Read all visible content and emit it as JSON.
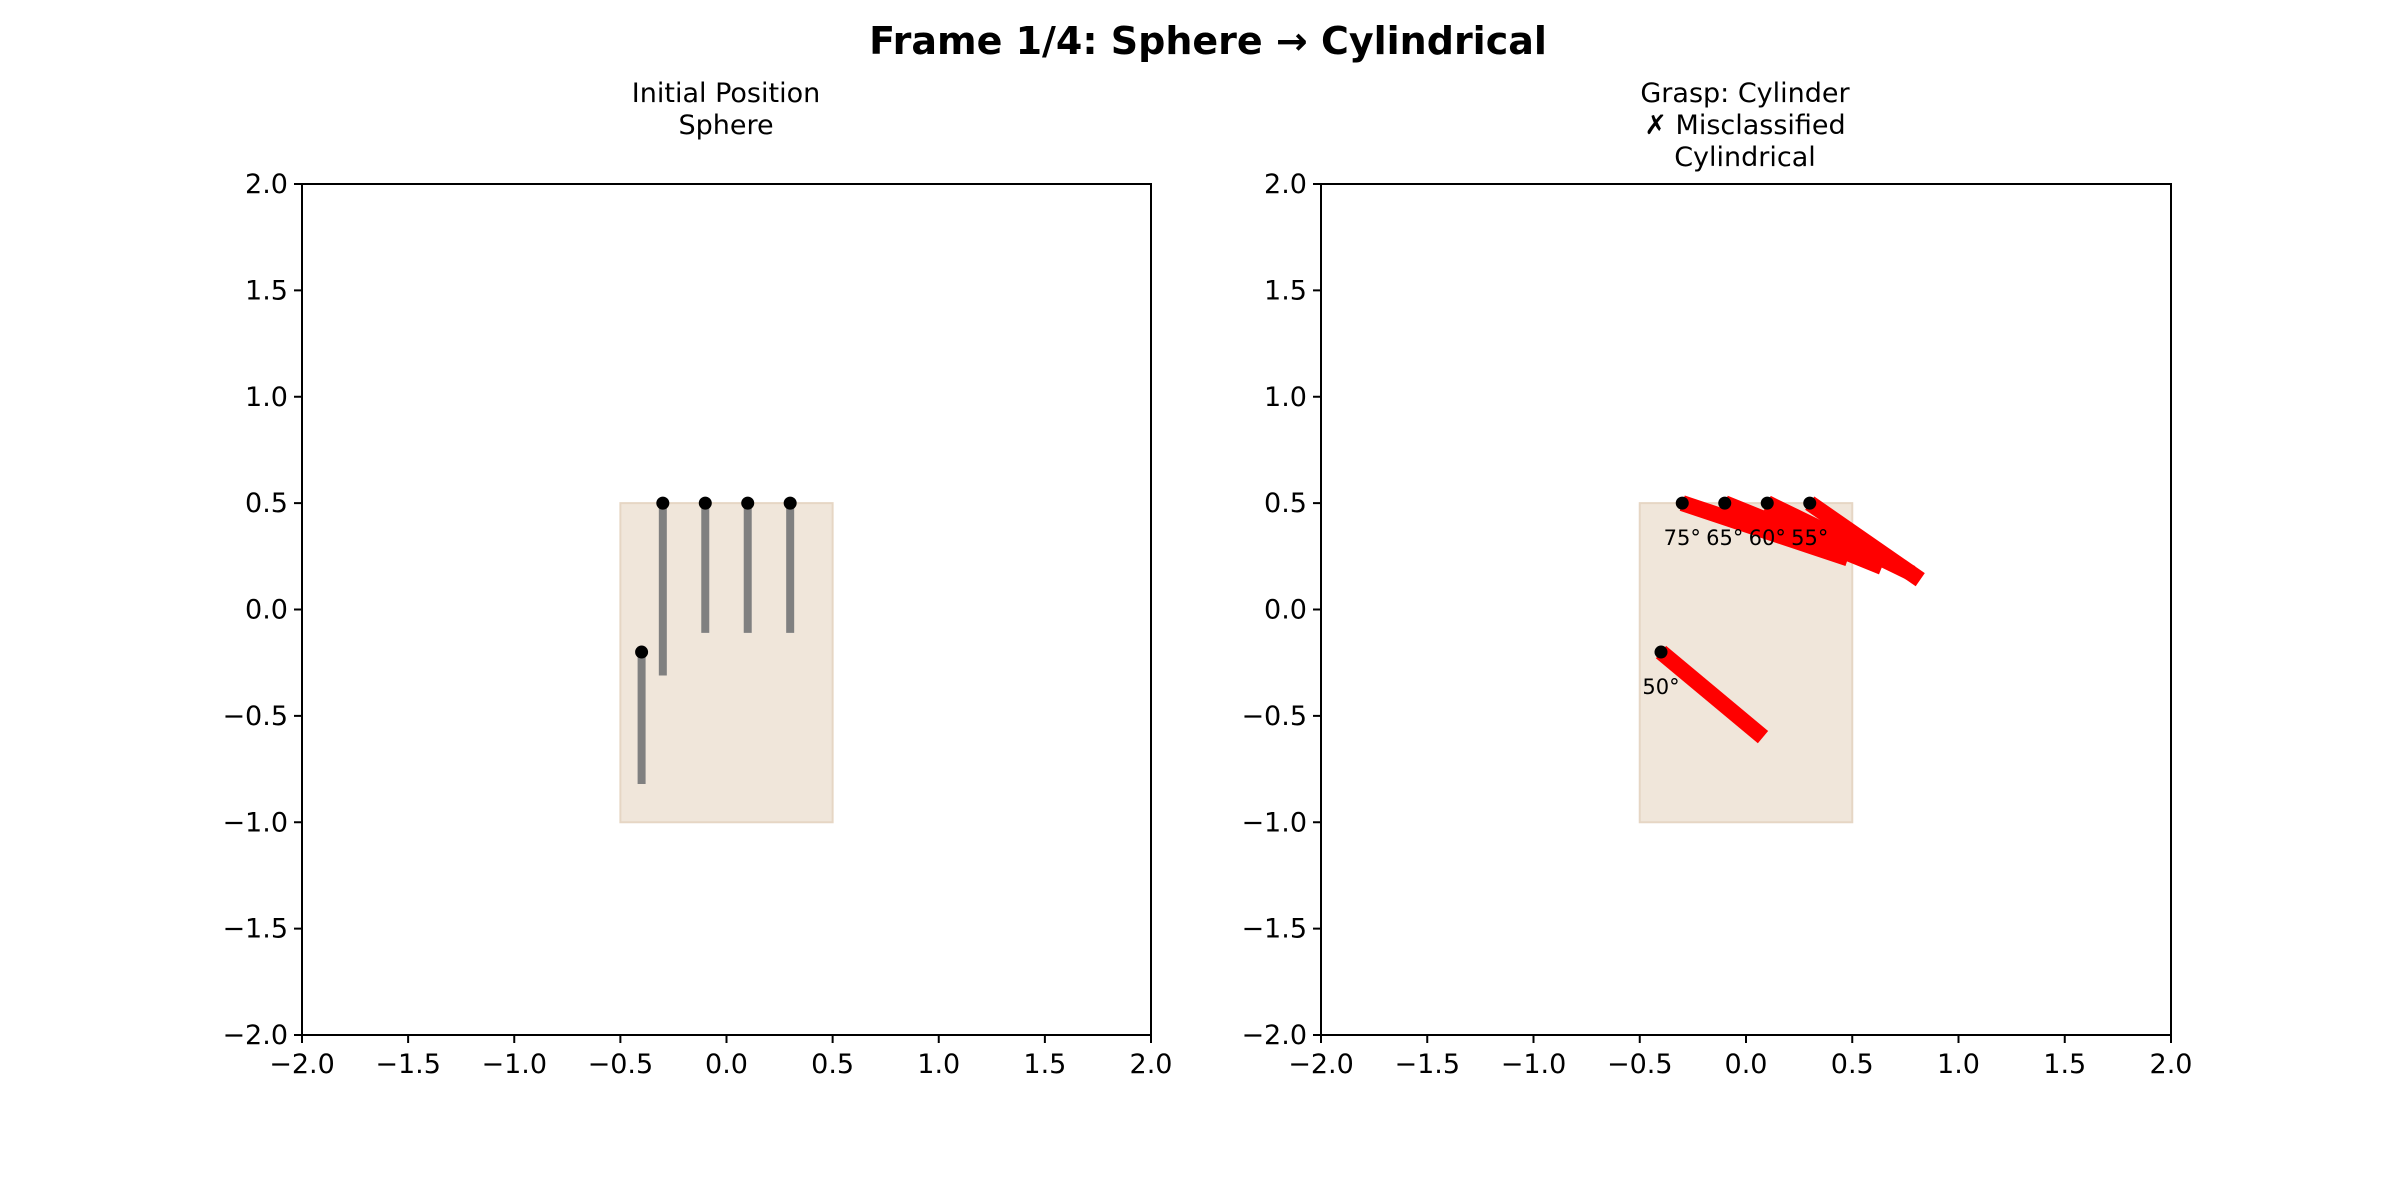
{
  "chart_data": {
    "title": "Frame 1/4: Sphere → Cylindrical",
    "panels": [
      {
        "title_lines": [
          "Initial Position",
          "Sphere"
        ],
        "xlim": [
          -2.0,
          2.0
        ],
        "ylim": [
          -2.0,
          2.0
        ],
        "xticks": [
          "−2.0",
          "−1.5",
          "−1.0",
          "−0.5",
          "0.0",
          "0.5",
          "1.0",
          "1.5",
          "2.0"
        ],
        "yticks": [
          "2.0",
          "1.5",
          "1.0",
          "0.5",
          "0.0",
          "−0.5",
          "−1.0",
          "−1.5",
          "−2.0"
        ],
        "palm": {
          "x": [
            -0.5,
            0.5
          ],
          "y": [
            -1.0,
            0.5
          ],
          "color": "#f0e6da",
          "edge": "#e6d6c4"
        },
        "finger_color": "#808080",
        "fingers": [
          {
            "x": -0.4,
            "y": -0.2,
            "y_end": -0.82
          },
          {
            "x": -0.3,
            "y": 0.5,
            "y_end": -0.31
          },
          {
            "x": -0.1,
            "y": 0.5,
            "y_end": -0.11
          },
          {
            "x": 0.1,
            "y": 0.5,
            "y_end": -0.11
          },
          {
            "x": 0.3,
            "y": 0.5,
            "y_end": -0.11
          }
        ]
      },
      {
        "title_lines": [
          "Grasp: Cylinder",
          "✗ Misclassified",
          "Cylindrical"
        ],
        "xlim": [
          -2.0,
          2.0
        ],
        "ylim": [
          -2.0,
          2.0
        ],
        "xticks": [
          "−2.0",
          "−1.5",
          "−1.0",
          "−0.5",
          "0.0",
          "0.5",
          "1.0",
          "1.5",
          "2.0"
        ],
        "yticks": [
          "2.0",
          "1.5",
          "1.0",
          "0.5",
          "0.0",
          "−0.5",
          "−1.0",
          "−1.5",
          "−2.0"
        ],
        "palm": {
          "x": [
            -0.5,
            0.5
          ],
          "y": [
            -1.0,
            0.5
          ],
          "color": "#f0e6da",
          "edge": "#e6d6c4"
        },
        "finger_color": "#ff0000",
        "fingers": [
          {
            "x": -0.4,
            "y": -0.2,
            "x_end": 0.08,
            "y_end": -0.6,
            "angle_label": "50°"
          },
          {
            "x": -0.3,
            "y": 0.5,
            "x_end": 0.48,
            "y_end": 0.24,
            "angle_label": "75°"
          },
          {
            "x": -0.1,
            "y": 0.5,
            "x_end": 0.64,
            "y_end": 0.2,
            "angle_label": "65°"
          },
          {
            "x": 0.1,
            "y": 0.5,
            "x_end": 0.78,
            "y_end": 0.17,
            "angle_label": "60°"
          },
          {
            "x": 0.3,
            "y": 0.5,
            "x_end": 0.82,
            "y_end": 0.14,
            "angle_label": "55°"
          }
        ]
      }
    ]
  }
}
